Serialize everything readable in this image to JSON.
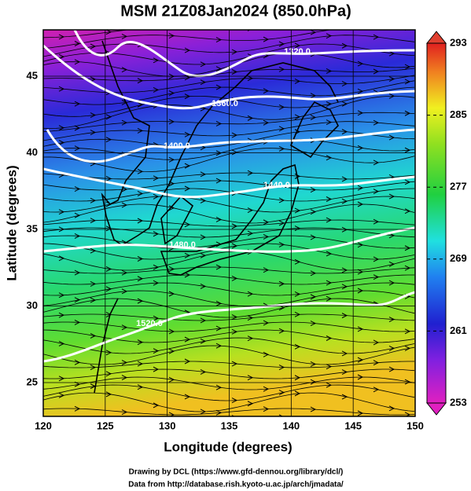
{
  "title": "MSM 21Z08Jan2024 (850.0hPa)",
  "x_axis": {
    "label": "Longitude (degrees)",
    "ticks": [
      120,
      125,
      130,
      135,
      140,
      145,
      150
    ]
  },
  "y_axis": {
    "label": "Latitude  (degrees)",
    "ticks": [
      25,
      30,
      35,
      40,
      45
    ]
  },
  "colorbar": {
    "ticks": [
      253,
      261,
      269,
      277,
      285,
      293
    ]
  },
  "contours": [
    {
      "label": "1320.0"
    },
    {
      "label": "1360.0"
    },
    {
      "label": "1400.0"
    },
    {
      "label": "1440.0"
    },
    {
      "label": "1480.0"
    },
    {
      "label": "1520.0"
    }
  ],
  "credits": [
    "Drawing by DCL (https://www.gfd-dennou.org/library/dcl/)",
    "Data from http://database.rish.kyoto-u.ac.jp/arch/jmadata/"
  ]
}
